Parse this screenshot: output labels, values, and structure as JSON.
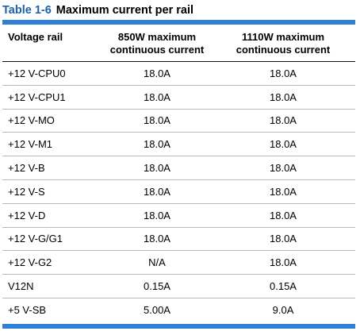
{
  "caption": {
    "number": "Table 1-6",
    "title": "Maximum current per rail"
  },
  "colors": {
    "accent": "#2f7fd6",
    "caption_number": "#1a5fb4"
  },
  "table": {
    "headers": {
      "rail": "Voltage rail",
      "col850_line1": "850W maximum",
      "col850_line2": "continuous current",
      "col1110_line1": "1110W maximum",
      "col1110_line2": "continuous current"
    },
    "rows": [
      {
        "rail": "+12 V-CPU0",
        "w850": "18.0A",
        "w1110": "18.0A"
      },
      {
        "rail": "+12 V-CPU1",
        "w850": "18.0A",
        "w1110": "18.0A"
      },
      {
        "rail": "+12 V-MO",
        "w850": "18.0A",
        "w1110": "18.0A"
      },
      {
        "rail": "+12 V-M1",
        "w850": "18.0A",
        "w1110": "18.0A"
      },
      {
        "rail": "+12 V-B",
        "w850": "18.0A",
        "w1110": "18.0A"
      },
      {
        "rail": "+12 V-S",
        "w850": "18.0A",
        "w1110": "18.0A"
      },
      {
        "rail": "+12 V-D",
        "w850": "18.0A",
        "w1110": "18.0A"
      },
      {
        "rail": "+12 V-G/G1",
        "w850": "18.0A",
        "w1110": "18.0A"
      },
      {
        "rail": "+12 V-G2",
        "w850": "N/A",
        "w1110": "18.0A"
      },
      {
        "rail": "V12N",
        "w850": "0.15A",
        "w1110": "0.15A"
      },
      {
        "rail": "+5 V-SB",
        "w850": "5.00A",
        "w1110": "9.0A"
      }
    ]
  }
}
